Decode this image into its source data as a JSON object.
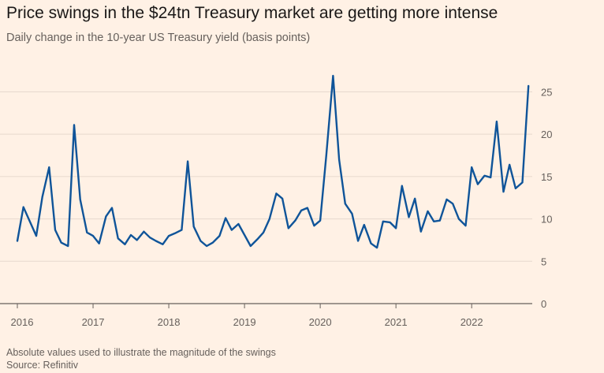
{
  "chart_data": {
    "type": "line",
    "title": "Price swings in the $24tn Treasury market are getting more intense",
    "subtitle": "Daily change in the 10-year US Treasury yield (basis points)",
    "note": "Absolute values used to illustrate the magnitude of the swings",
    "source": "Source: Refinitiv",
    "x_ticks": [
      {
        "value": 2016,
        "label": "2016"
      },
      {
        "value": 2017,
        "label": "2017"
      },
      {
        "value": 2018,
        "label": "2018"
      },
      {
        "value": 2019,
        "label": "2019"
      },
      {
        "value": 2020,
        "label": "2020"
      },
      {
        "value": 2021,
        "label": "2021"
      },
      {
        "value": 2022,
        "label": "2022"
      }
    ],
    "xlim": [
      2016,
      2022.8
    ],
    "y_ticks": [
      0,
      5,
      10,
      15,
      20,
      25
    ],
    "ylim": [
      0,
      27
    ],
    "series": [
      {
        "name": "",
        "color": "#0f5499",
        "x": [
          2016.0,
          2016.08,
          2016.17,
          2016.25,
          2016.33,
          2016.42,
          2016.5,
          2016.58,
          2016.67,
          2016.75,
          2016.83,
          2016.92,
          2017.0,
          2017.08,
          2017.17,
          2017.25,
          2017.33,
          2017.42,
          2017.5,
          2017.58,
          2017.67,
          2017.75,
          2017.83,
          2017.92,
          2018.0,
          2018.08,
          2018.17,
          2018.25,
          2018.33,
          2018.42,
          2018.5,
          2018.58,
          2018.67,
          2018.75,
          2018.83,
          2018.92,
          2019.0,
          2019.08,
          2019.17,
          2019.25,
          2019.33,
          2019.42,
          2019.5,
          2019.58,
          2019.67,
          2019.75,
          2019.83,
          2019.92,
          2020.0,
          2020.08,
          2020.17,
          2020.25,
          2020.33,
          2020.42,
          2020.5,
          2020.58,
          2020.67,
          2020.75,
          2020.83,
          2020.92,
          2021.0,
          2021.08,
          2021.17,
          2021.25,
          2021.33,
          2021.42,
          2021.5,
          2021.58,
          2021.67,
          2021.75,
          2021.83,
          2021.92,
          2022.0,
          2022.08,
          2022.17,
          2022.25,
          2022.33,
          2022.42,
          2022.5,
          2022.58,
          2022.67,
          2022.75
        ],
        "values": [
          7.4,
          11.4,
          9.6,
          8.0,
          12.6,
          16.1,
          8.7,
          7.2,
          6.8,
          21.1,
          12.3,
          8.4,
          8.0,
          7.1,
          10.3,
          11.3,
          7.7,
          7.0,
          8.1,
          7.5,
          8.5,
          7.8,
          7.4,
          7.0,
          8.0,
          8.3,
          8.7,
          16.8,
          9.1,
          7.4,
          6.8,
          7.2,
          8.0,
          10.1,
          8.7,
          9.4,
          8.1,
          6.8,
          7.6,
          8.4,
          10.0,
          13.0,
          12.4,
          8.9,
          9.8,
          11.0,
          11.3,
          9.2,
          9.8,
          17.5,
          26.9,
          17.0,
          11.8,
          10.6,
          7.4,
          9.3,
          7.1,
          6.6,
          9.7,
          9.6,
          8.9,
          13.9,
          10.2,
          12.4,
          8.5,
          10.9,
          9.7,
          9.8,
          12.3,
          11.8,
          10.0,
          9.2,
          16.1,
          14.1,
          15.1,
          14.9,
          21.5,
          13.2,
          16.4,
          13.6,
          14.3,
          25.7
        ]
      }
    ]
  }
}
